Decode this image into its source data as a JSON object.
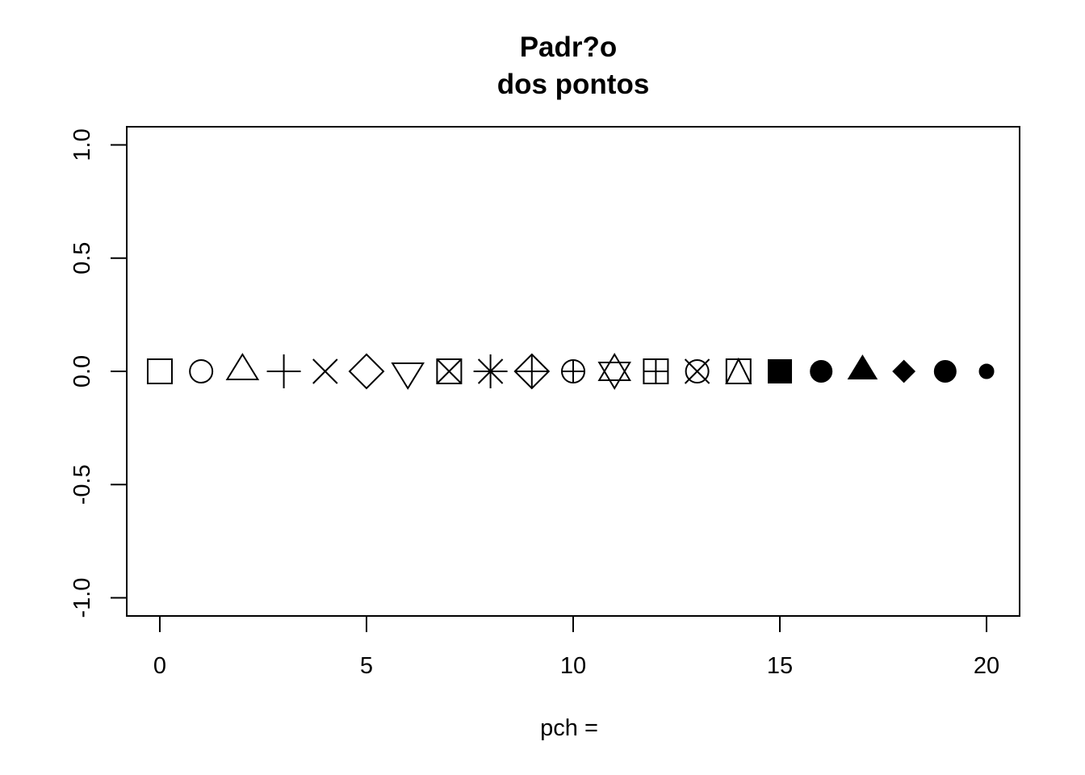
{
  "chart_data": {
    "type": "scatter",
    "title_lines": [
      "Padr?o",
      "dos pontos"
    ],
    "xlabel": "pch =",
    "ylabel": "",
    "xlim": [
      -0.8,
      20.8
    ],
    "ylim": [
      -1.08,
      1.08
    ],
    "x_ticks": [
      "0",
      "5",
      "10",
      "15",
      "20"
    ],
    "y_ticks": [
      "-1.0",
      "-0.5",
      "0.0",
      "0.5",
      "1.0"
    ],
    "grid": false,
    "series": [
      {
        "x": [
          0,
          1,
          2,
          3,
          4,
          5,
          6,
          7,
          8,
          9,
          10,
          11,
          12,
          13,
          14,
          15,
          16,
          17,
          18,
          19,
          20
        ],
        "y": [
          0,
          0,
          0,
          0,
          0,
          0,
          0,
          0,
          0,
          0,
          0,
          0,
          0,
          0,
          0,
          0,
          0,
          0,
          0,
          0,
          0
        ],
        "pch": [
          0,
          1,
          2,
          3,
          4,
          5,
          6,
          7,
          8,
          9,
          10,
          11,
          12,
          13,
          14,
          15,
          16,
          17,
          18,
          19,
          20
        ]
      }
    ],
    "color": "#000000"
  }
}
